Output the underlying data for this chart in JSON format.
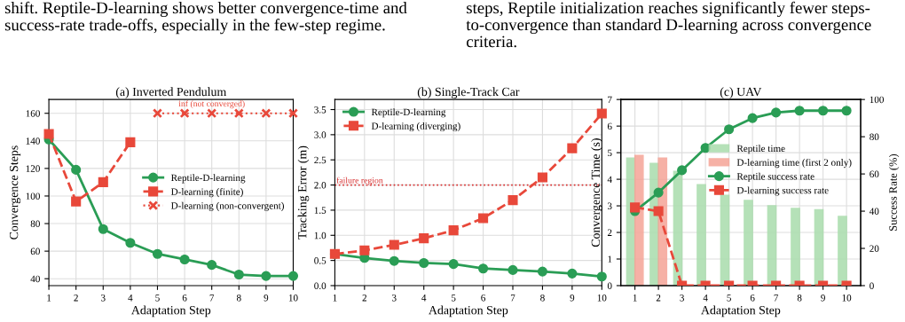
{
  "chart_data": [
    {
      "type": "line",
      "title": "(a) Inverted Pendulum",
      "xlabel": "Adaptation Step",
      "ylabel": "Convergence Steps",
      "x": [
        1,
        2,
        3,
        4,
        5,
        6,
        7,
        8,
        9,
        10
      ],
      "xlim": [
        1,
        10
      ],
      "xticks": [
        1,
        2,
        3,
        4,
        5,
        6,
        7,
        8,
        9,
        10
      ],
      "ylim": [
        35,
        170
      ],
      "yticks": [
        40,
        60,
        80,
        100,
        120,
        140,
        160
      ],
      "grid": true,
      "legend": "center right",
      "annotations": [
        "shift. Reptile-D-learning shows better convergence-time and\nsuccess-rate trade-offs, especially in the few-step regime.",
        {
          "text": "inf (not converged)",
          "x": 7,
          "y": 160
        }
      ],
      "series": [
        {
          "name": "Reptile-D-learning",
          "color": "#2a9d55",
          "marker": "circle",
          "line_style": "solid",
          "values": [
            141,
            119,
            76,
            66,
            58,
            54,
            50,
            43,
            42,
            42
          ]
        },
        {
          "name": "D-learning (finite)",
          "color": "#e8483a",
          "marker": "square",
          "line_style": "dashed",
          "x": [
            1,
            2,
            3,
            4
          ],
          "values": [
            145,
            96,
            110,
            139
          ]
        },
        {
          "name": "D-learning (non-convergent)",
          "color": "#e8483a",
          "marker": "cross",
          "line_style": "dotted",
          "x": [
            5,
            6,
            7,
            8,
            9,
            10
          ],
          "values": [
            160,
            160,
            160,
            160,
            160,
            160
          ]
        }
      ]
    },
    {
      "type": "line",
      "title": "(b) Single-Track Car",
      "xlabel": "Adaptation Step",
      "ylabel": "Tracking Error (m)",
      "x": [
        1,
        2,
        3,
        4,
        5,
        6,
        7,
        8,
        9,
        10
      ],
      "xlim": [
        1,
        10
      ],
      "xticks": [
        1,
        2,
        3,
        4,
        5,
        6,
        7,
        8,
        9,
        10
      ],
      "ylim": [
        0,
        3.7
      ],
      "yticks": [
        {
          "value": 0,
          "label": "0.0"
        },
        0.5,
        {
          "value": 1,
          "label": "1.0"
        },
        1.5,
        {
          "value": 2,
          "label": "2.0"
        },
        2.5,
        {
          "value": 3,
          "label": "3.0"
        },
        3.5
      ],
      "grid": true,
      "legend": "upper left",
      "ref_lines": [
        {
          "axis": "y",
          "value": 2,
          "label": "failure region",
          "color": "#d62f2f",
          "line_style": "dotted"
        }
      ],
      "series": [
        {
          "name": "Reptile-D-learning",
          "color": "#2a9d55",
          "marker": "circle",
          "line_style": "solid",
          "values": [
            0.63,
            0.55,
            0.49,
            0.45,
            0.43,
            0.34,
            0.31,
            0.28,
            0.24,
            0.18
          ]
        },
        {
          "name": "D-learning (diverging)",
          "color": "#e8483a",
          "marker": "square",
          "line_style": "dashed",
          "values": [
            0.63,
            0.7,
            0.81,
            0.94,
            1.1,
            1.34,
            1.7,
            2.15,
            2.73,
            3.42
          ]
        }
      ]
    },
    {
      "type": "bar",
      "title": "(c) UAV",
      "xlabel": "Adaptation Step",
      "ylabel": "Convergence Time (s)",
      "y2label": "Success Rate (%)",
      "categories": [
        "1",
        "2",
        "3",
        "4",
        "5",
        "6",
        "7",
        "8",
        "9",
        "10"
      ],
      "ylim": [
        0,
        7
      ],
      "yticks": [
        0,
        1,
        2,
        3,
        4,
        5,
        6,
        7
      ],
      "y2lim": [
        0,
        100
      ],
      "y2ticks": [
        0,
        20,
        40,
        60,
        80,
        100
      ],
      "grid": true,
      "legend": "center right",
      "annotations": [
        "steps, Reptile initialization reaches significantly fewer steps-\nto-convergence than standard D-learning across convergence\ncriteria."
      ],
      "series": [
        {
          "name": "Reptile time",
          "color": "#a9dcac",
          "values": [
            4.8,
            4.6,
            4.3,
            3.8,
            3.4,
            3.2,
            3.0,
            2.9,
            2.85,
            2.6
          ]
        },
        {
          "name": "D-learning time (first 2 only)",
          "color": "#f5a497",
          "values": [
            4.9,
            4.8,
            null,
            null,
            null,
            null,
            null,
            null,
            null,
            null
          ]
        },
        {
          "name": "Reptile success rate",
          "type": "line",
          "axis": "y2",
          "color": "#2a9d55",
          "marker": "circle",
          "line_style": "solid",
          "values": [
            40,
            50,
            62,
            74,
            84,
            90,
            93,
            94,
            94,
            94
          ]
        },
        {
          "name": "D-learning success rate",
          "type": "line",
          "axis": "y2",
          "color": "#e8483a",
          "marker": "square",
          "line_style": "dashed",
          "values": [
            42,
            40,
            0,
            0,
            0,
            0,
            0,
            0,
            0,
            0
          ]
        }
      ]
    }
  ]
}
